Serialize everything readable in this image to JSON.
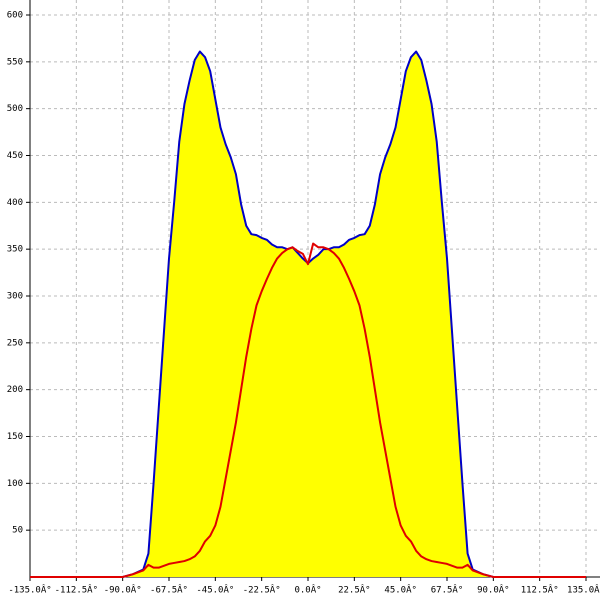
{
  "chart_data": {
    "type": "area-line",
    "x": [
      -135,
      -90,
      -85,
      -80,
      -77.5,
      -75,
      -72.5,
      -70,
      -67.5,
      -65,
      -62.5,
      -60,
      -57.5,
      -55,
      -52.5,
      -50,
      -47.5,
      -45,
      -42.5,
      -40,
      -37.5,
      -35,
      -32.5,
      -30,
      -27.5,
      -25,
      -22.5,
      -20,
      -17.5,
      -15,
      -12.5,
      -10,
      -7.5,
      -5,
      -2.5,
      0,
      2.5,
      5,
      7.5,
      10,
      12.5,
      15,
      17.5,
      20,
      22.5,
      25,
      27.5,
      30,
      32.5,
      35,
      37.5,
      40,
      42.5,
      45,
      47.5,
      50,
      52.5,
      55,
      57.5,
      60,
      62.5,
      65,
      67.5,
      70,
      72.5,
      75,
      77.5,
      80,
      85,
      90,
      135
    ],
    "series": [
      {
        "color": "#0000c8",
        "fill": "#ffff00",
        "values": [
          0,
          0,
          3,
          8,
          25,
          100,
          180,
          260,
          340,
          400,
          465,
          505,
          530,
          552,
          561,
          555,
          540,
          510,
          480,
          462,
          448,
          430,
          398,
          375,
          366,
          365,
          362,
          360,
          355,
          352,
          352,
          350,
          352,
          346,
          340,
          335,
          340,
          344,
          350,
          350,
          352,
          352,
          355,
          360,
          362,
          365,
          366,
          375,
          398,
          430,
          448,
          462,
          480,
          510,
          540,
          555,
          561,
          552,
          530,
          505,
          465,
          400,
          340,
          260,
          180,
          100,
          25,
          8,
          3,
          0,
          0
        ]
      },
      {
        "color": "#e00000",
        "values": [
          0,
          0,
          3,
          7,
          13,
          10,
          10,
          12,
          14,
          15,
          16,
          17,
          19,
          22,
          28,
          38,
          44,
          55,
          75,
          105,
          135,
          165,
          200,
          235,
          265,
          290,
          305,
          318,
          330,
          340,
          346,
          350,
          352,
          348,
          345,
          334,
          356,
          352,
          352,
          350,
          346,
          340,
          330,
          318,
          305,
          290,
          265,
          235,
          200,
          165,
          135,
          105,
          75,
          55,
          44,
          38,
          28,
          22,
          19,
          17,
          16,
          15,
          14,
          12,
          10,
          10,
          13,
          7,
          3,
          0,
          0
        ]
      }
    ],
    "xlim": [
      -135,
      135
    ],
    "xticks": [
      {
        "value": -135,
        "label": "-135.0Â°"
      },
      {
        "value": -112.5,
        "label": "-112.5Â°"
      },
      {
        "value": -90,
        "label": "-90.0Â°"
      },
      {
        "value": -67.5,
        "label": "-67.5Â°"
      },
      {
        "value": -45,
        "label": "-45.0Â°"
      },
      {
        "value": -22.5,
        "label": "-22.5Â°"
      },
      {
        "value": 0,
        "label": "0.0Â°"
      },
      {
        "value": 22.5,
        "label": "22.5Â°"
      },
      {
        "value": 45,
        "label": "45.0Â°"
      },
      {
        "value": 67.5,
        "label": "67.5Â°"
      },
      {
        "value": 90,
        "label": "90.0Â°"
      },
      {
        "value": 112.5,
        "label": "112.5Â°"
      },
      {
        "value": 135,
        "label": "135.0Â°"
      }
    ],
    "ylim": [
      0,
      600
    ],
    "yticks": [
      50,
      100,
      150,
      200,
      250,
      300,
      350,
      400,
      450,
      500,
      550,
      600
    ],
    "grid": true
  }
}
